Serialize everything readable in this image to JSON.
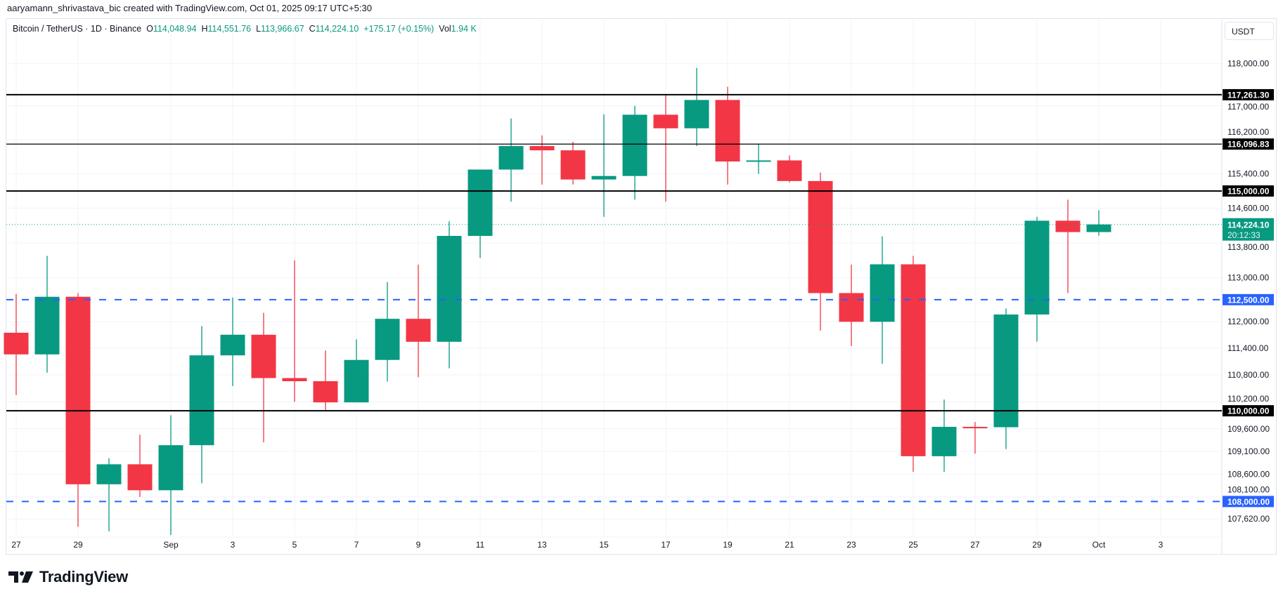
{
  "credit": "aaryamann_shrivastava_bic created with TradingView.com, Oct 01, 2025 09:17 UTC+5:30",
  "legend": {
    "symbol": "Bitcoin / TetherUS · 1D · Binance",
    "o_label": "O",
    "o": "114,048.94",
    "h_label": "H",
    "h": "114,551.76",
    "l_label": "L",
    "l": "113,966.67",
    "c_label": "C",
    "c": "114,224.10",
    "change": "+175.17 (+0.15%)",
    "vol_label": "Vol",
    "vol": "1.94 K"
  },
  "currency_button": "USDT",
  "colors": {
    "up": "#089981",
    "down": "#F23645",
    "level": "#000000",
    "dashed": "#2962FF",
    "grid": "#f0f3fa"
  },
  "logo_text": "TradingView",
  "chart_data": {
    "type": "candlestick",
    "scale": "log",
    "ylim": [
      107400,
      118300
    ],
    "grid": true,
    "price_ticks": [
      "118,000.00",
      "117,000.00",
      "116,200.00",
      "115,400.00",
      "114,600.00",
      "113,800.00",
      "113,000.00",
      "112,000.00",
      "111,400.00",
      "110,800.00",
      "110,200.00",
      "109,600.00",
      "109,100.00",
      "108,600.00",
      "108,100.00",
      "107,620.00"
    ],
    "date_labels": [
      {
        "day": 0,
        "label": "27"
      },
      {
        "day": 2,
        "label": "29"
      },
      {
        "day": 5,
        "label": "Sep"
      },
      {
        "day": 7,
        "label": "3"
      },
      {
        "day": 9,
        "label": "5"
      },
      {
        "day": 11,
        "label": "7"
      },
      {
        "day": 13,
        "label": "9"
      },
      {
        "day": 15,
        "label": "11"
      },
      {
        "day": 17,
        "label": "13"
      },
      {
        "day": 19,
        "label": "15"
      },
      {
        "day": 21,
        "label": "17"
      },
      {
        "day": 23,
        "label": "19"
      },
      {
        "day": 25,
        "label": "21"
      },
      {
        "day": 27,
        "label": "23"
      },
      {
        "day": 29,
        "label": "25"
      },
      {
        "day": 31,
        "label": "27"
      },
      {
        "day": 33,
        "label": "29"
      },
      {
        "day": 35,
        "label": "Oct"
      },
      {
        "day": 37,
        "label": "3"
      }
    ],
    "candles": [
      {
        "date": "2025-08-27",
        "o": 111750,
        "h": 112630,
        "l": 110350,
        "c": 111262
      },
      {
        "date": "2025-08-28",
        "o": 111262,
        "h": 113500,
        "l": 110850,
        "c": 112566
      },
      {
        "date": "2025-08-29",
        "o": 112566,
        "h": 112650,
        "l": 107450,
        "c": 108377
      },
      {
        "date": "2025-08-30",
        "o": 108377,
        "h": 108950,
        "l": 107350,
        "c": 108816
      },
      {
        "date": "2025-08-31",
        "o": 108816,
        "h": 109470,
        "l": 108100,
        "c": 108246
      },
      {
        "date": "2025-09-01",
        "o": 108246,
        "h": 109900,
        "l": 107270,
        "c": 109237
      },
      {
        "date": "2025-09-02",
        "o": 109237,
        "h": 111900,
        "l": 108400,
        "c": 111240
      },
      {
        "date": "2025-09-03",
        "o": 111240,
        "h": 112550,
        "l": 110550,
        "c": 111705
      },
      {
        "date": "2025-09-04",
        "o": 111705,
        "h": 112200,
        "l": 109300,
        "c": 110730
      },
      {
        "date": "2025-09-05",
        "o": 110730,
        "h": 113400,
        "l": 110200,
        "c": 110660
      },
      {
        "date": "2025-09-06",
        "o": 110660,
        "h": 111350,
        "l": 110000,
        "c": 110187
      },
      {
        "date": "2025-09-07",
        "o": 110187,
        "h": 111600,
        "l": 110200,
        "c": 111137
      },
      {
        "date": "2025-09-08",
        "o": 111137,
        "h": 112900,
        "l": 110650,
        "c": 112065
      },
      {
        "date": "2025-09-09",
        "o": 112065,
        "h": 113300,
        "l": 110750,
        "c": 111546
      },
      {
        "date": "2025-09-10",
        "o": 111546,
        "h": 114300,
        "l": 110950,
        "c": 113960
      },
      {
        "date": "2025-09-11",
        "o": 113960,
        "h": 115500,
        "l": 113450,
        "c": 115500
      },
      {
        "date": "2025-09-12",
        "o": 115500,
        "h": 116700,
        "l": 114750,
        "c": 116050
      },
      {
        "date": "2025-09-13",
        "o": 116050,
        "h": 116300,
        "l": 115150,
        "c": 115950
      },
      {
        "date": "2025-09-14",
        "o": 115950,
        "h": 116150,
        "l": 115150,
        "c": 115268
      },
      {
        "date": "2025-09-15",
        "o": 115268,
        "h": 116800,
        "l": 114400,
        "c": 115350
      },
      {
        "date": "2025-09-16",
        "o": 115350,
        "h": 117000,
        "l": 114800,
        "c": 116788
      },
      {
        "date": "2025-09-17",
        "o": 116788,
        "h": 117250,
        "l": 114750,
        "c": 116468
      },
      {
        "date": "2025-09-18",
        "o": 116468,
        "h": 117900,
        "l": 116050,
        "c": 117137
      },
      {
        "date": "2025-09-19",
        "o": 117137,
        "h": 117450,
        "l": 115150,
        "c": 115688
      },
      {
        "date": "2025-09-20",
        "o": 115688,
        "h": 116100,
        "l": 115400,
        "c": 115714
      },
      {
        "date": "2025-09-21",
        "o": 115714,
        "h": 115830,
        "l": 115200,
        "c": 115232
      },
      {
        "date": "2025-09-22",
        "o": 115232,
        "h": 115430,
        "l": 111800,
        "c": 112650
      },
      {
        "date": "2025-09-23",
        "o": 112650,
        "h": 113300,
        "l": 111450,
        "c": 111998
      },
      {
        "date": "2025-09-24",
        "o": 111998,
        "h": 113950,
        "l": 111050,
        "c": 113307
      },
      {
        "date": "2025-09-25",
        "o": 113307,
        "h": 113500,
        "l": 108650,
        "c": 108994
      },
      {
        "date": "2025-09-26",
        "o": 108994,
        "h": 110250,
        "l": 108650,
        "c": 109643
      },
      {
        "date": "2025-09-27",
        "o": 109643,
        "h": 109750,
        "l": 109050,
        "c": 109635
      },
      {
        "date": "2025-09-28",
        "o": 109635,
        "h": 112300,
        "l": 109150,
        "c": 112163
      },
      {
        "date": "2025-09-29",
        "o": 112163,
        "h": 114400,
        "l": 111550,
        "c": 114311
      },
      {
        "date": "2025-09-30",
        "o": 114311,
        "h": 114800,
        "l": 112650,
        "c": 114048.94
      },
      {
        "date": "2025-10-01",
        "o": 114048.94,
        "h": 114551.76,
        "l": 113966.67,
        "c": 114224.1
      }
    ],
    "levels": [
      {
        "price": 117261.3,
        "label": "117,261.30",
        "style": "solid-thick"
      },
      {
        "price": 116096.83,
        "label": "116,096.83",
        "style": "solid"
      },
      {
        "price": 115000,
        "label": "115,000.00",
        "style": "solid-thick"
      },
      {
        "price": 110000,
        "label": "110,000.00",
        "style": "solid-thick"
      },
      {
        "price": 112500,
        "label": "112,500.00",
        "style": "dashed"
      },
      {
        "price": 108000,
        "label": "108,000.00",
        "style": "dashed"
      }
    ],
    "last_price": {
      "price": 114224.1,
      "label": "114,224.10",
      "countdown": "20:12:33"
    }
  }
}
